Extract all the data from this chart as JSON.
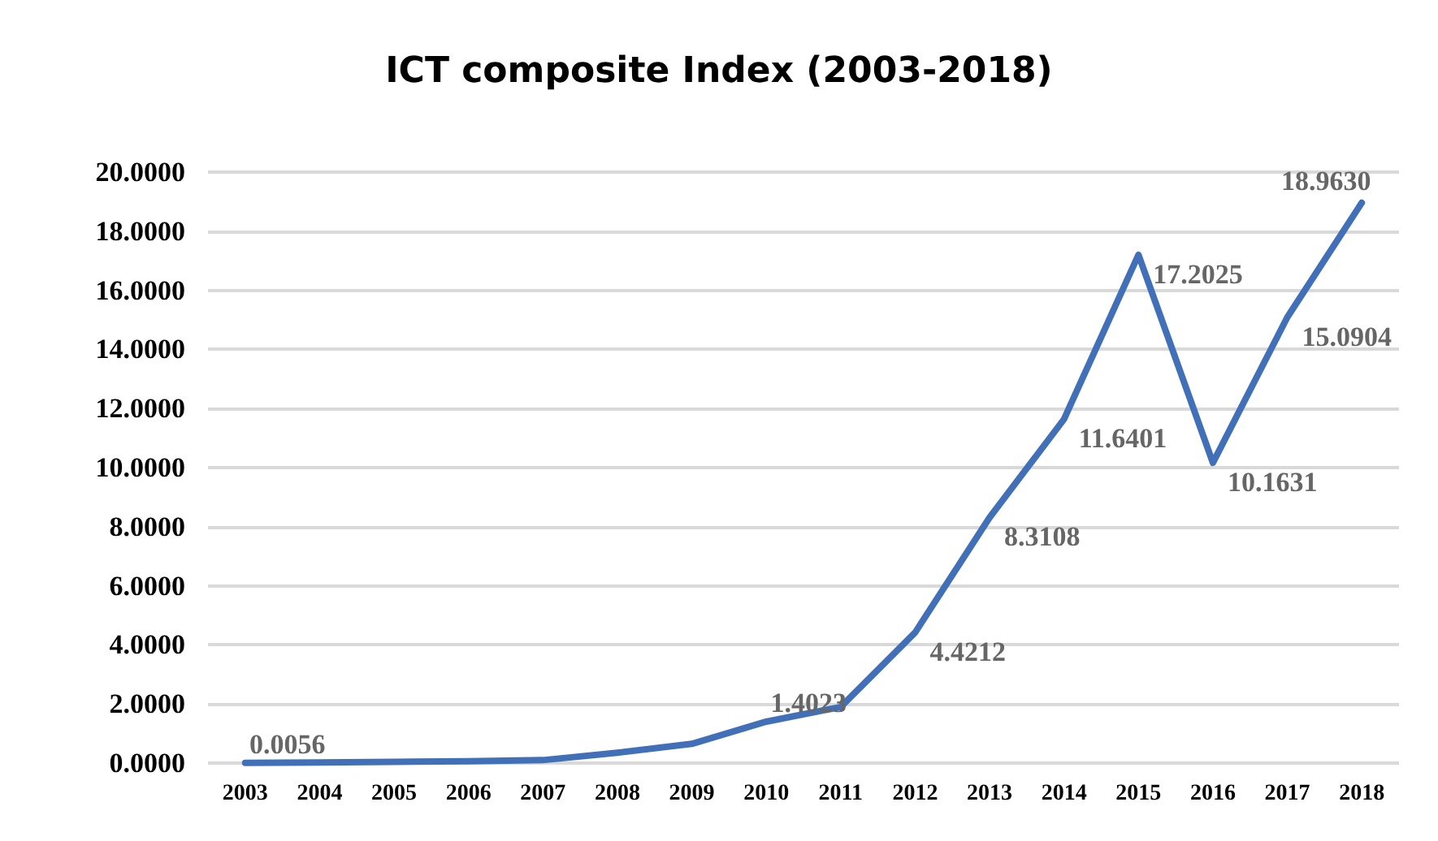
{
  "chart_data": {
    "type": "line",
    "title": "ICT composite Index (2003-2018)",
    "categories": [
      "2003",
      "2004",
      "2005",
      "2006",
      "2007",
      "2008",
      "2009",
      "2010",
      "2011",
      "2012",
      "2013",
      "2014",
      "2015",
      "2016",
      "2017",
      "2018"
    ],
    "series": [
      {
        "color": "#4270b8",
        "values": [
          0.0056,
          0.02,
          0.04,
          0.06,
          0.1,
          0.35,
          0.65,
          1.4023,
          1.9,
          4.4212,
          8.3108,
          11.6401,
          17.2025,
          10.1631,
          15.0904,
          18.963
        ],
        "value_labels": [
          "0.0056",
          null,
          null,
          null,
          null,
          null,
          null,
          "1.4023",
          null,
          "4.4212",
          "8.3108",
          "11.6401",
          "17.2025",
          "10.1631",
          "15.0904",
          "18.9630"
        ]
      }
    ],
    "ylim": [
      0,
      20
    ],
    "yticks": [
      {
        "value": 0,
        "label": "0.0000"
      },
      {
        "value": 2,
        "label": "2.0000"
      },
      {
        "value": 4,
        "label": "4.0000"
      },
      {
        "value": 6,
        "label": "6.0000"
      },
      {
        "value": 8,
        "label": "8.0000"
      },
      {
        "value": 10,
        "label": "10.0000"
      },
      {
        "value": 12,
        "label": "12.0000"
      },
      {
        "value": 14,
        "label": "14.0000"
      },
      {
        "value": 16,
        "label": "16.0000"
      },
      {
        "value": 18,
        "label": "18.0000"
      },
      {
        "value": 20,
        "label": "20.0000"
      }
    ],
    "grid": "y",
    "marker": "none",
    "line_style": "solid"
  }
}
